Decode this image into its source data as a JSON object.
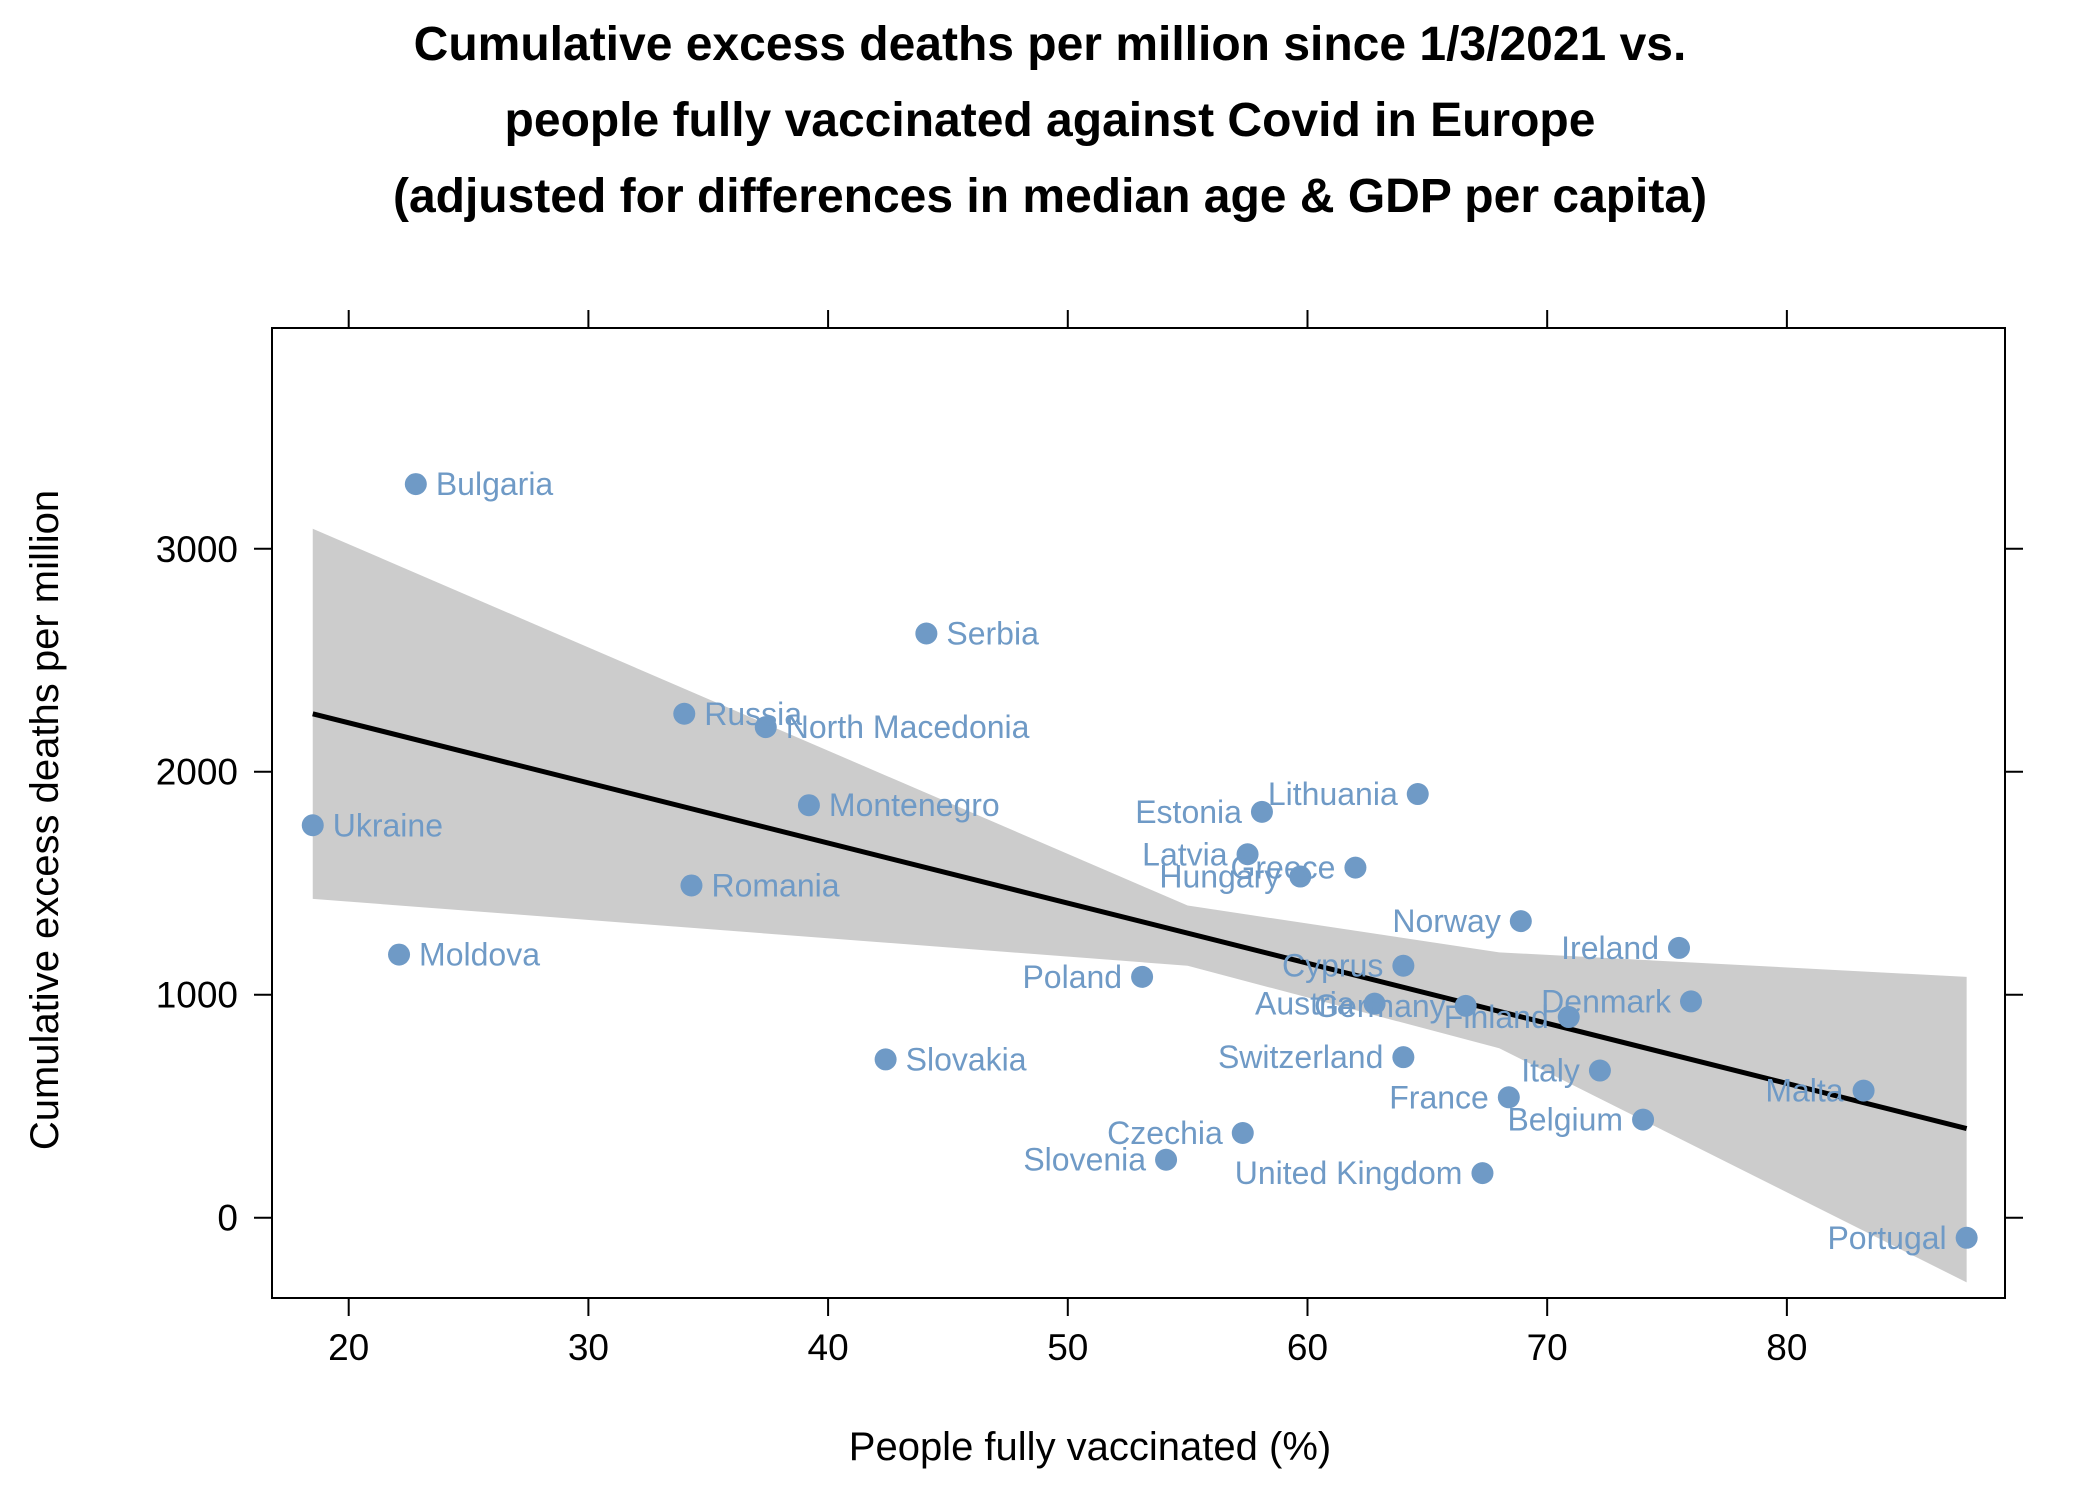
{
  "chart_data": {
    "type": "scatter",
    "title_lines": [
      "Cumulative excess deaths per million since 1/3/2021 vs.",
      "people fully vaccinated against Covid in Europe",
      "(adjusted for differences in median age & GDP per capita)"
    ],
    "xlabel": "People fully vaccinated (%)",
    "ylabel": "Cumulative excess deaths per million",
    "xlim": [
      16.8,
      89.1
    ],
    "ylim": [
      -360,
      3990
    ],
    "xticks": [
      20,
      30,
      40,
      50,
      60,
      70,
      80
    ],
    "yticks": [
      0,
      1000,
      2000,
      3000
    ],
    "colors": {
      "points": "#6f9ac6",
      "labels": "#6f9ac6",
      "ribbon": "#cccccc",
      "line": "#000000"
    },
    "trend_line": {
      "x": [
        18.5,
        87.5
      ],
      "y": [
        2260,
        400
      ]
    },
    "confidence_band": {
      "x": [
        18.5,
        55,
        68,
        87.5
      ],
      "lower": [
        1430,
        1130,
        760,
        -290
      ],
      "upper": [
        3090,
        1400,
        1190,
        1080
      ]
    },
    "points": [
      {
        "label": "Bulgaria",
        "x": 22.8,
        "y": 3290,
        "label_side": "right"
      },
      {
        "label": "Serbia",
        "x": 44.1,
        "y": 2620,
        "label_side": "right"
      },
      {
        "label": "Russia",
        "x": 34.0,
        "y": 2260,
        "label_side": "right"
      },
      {
        "label": "North Macedonia",
        "x": 37.4,
        "y": 2200,
        "label_side": "right"
      },
      {
        "label": "Montenegro",
        "x": 39.2,
        "y": 1850,
        "label_side": "right"
      },
      {
        "label": "Ukraine",
        "x": 18.5,
        "y": 1760,
        "label_side": "right"
      },
      {
        "label": "Romania",
        "x": 34.3,
        "y": 1490,
        "label_side": "right"
      },
      {
        "label": "Moldova",
        "x": 22.1,
        "y": 1180,
        "label_side": "right"
      },
      {
        "label": "Slovakia",
        "x": 42.4,
        "y": 710,
        "label_side": "right"
      },
      {
        "label": "Estonia",
        "x": 58.1,
        "y": 1820,
        "label_side": "left"
      },
      {
        "label": "Lithuania",
        "x": 64.6,
        "y": 1900,
        "label_side": "left"
      },
      {
        "label": "Latvia",
        "x": 57.5,
        "y": 1630,
        "label_side": "left"
      },
      {
        "label": "Greece",
        "x": 62.0,
        "y": 1570,
        "label_side": "left"
      },
      {
        "label": "Hungary",
        "x": 59.7,
        "y": 1530,
        "label_side": "left"
      },
      {
        "label": "Norway",
        "x": 68.9,
        "y": 1330,
        "label_side": "left"
      },
      {
        "label": "Ireland",
        "x": 75.5,
        "y": 1210,
        "label_side": "left"
      },
      {
        "label": "Cyprus",
        "x": 64.0,
        "y": 1130,
        "label_side": "left"
      },
      {
        "label": "Poland",
        "x": 53.1,
        "y": 1080,
        "label_side": "left"
      },
      {
        "label": "Austria",
        "x": 62.8,
        "y": 960,
        "label_side": "left"
      },
      {
        "label": "Germany",
        "x": 66.6,
        "y": 950,
        "label_side": "left"
      },
      {
        "label": "Denmark",
        "x": 76.0,
        "y": 970,
        "label_side": "left"
      },
      {
        "label": "Finland",
        "x": 70.9,
        "y": 900,
        "label_side": "left"
      },
      {
        "label": "Switzerland",
        "x": 64.0,
        "y": 720,
        "label_side": "left"
      },
      {
        "label": "Italy",
        "x": 72.2,
        "y": 660,
        "label_side": "left"
      },
      {
        "label": "France",
        "x": 68.4,
        "y": 540,
        "label_side": "left"
      },
      {
        "label": "Malta",
        "x": 83.2,
        "y": 570,
        "label_side": "left"
      },
      {
        "label": "Belgium",
        "x": 74.0,
        "y": 440,
        "label_side": "left"
      },
      {
        "label": "Czechia",
        "x": 57.3,
        "y": 380,
        "label_side": "left"
      },
      {
        "label": "Slovenia",
        "x": 54.1,
        "y": 260,
        "label_side": "left"
      },
      {
        "label": "United Kingdom",
        "x": 67.3,
        "y": 200,
        "label_side": "left"
      },
      {
        "label": "Portugal",
        "x": 87.5,
        "y": -90,
        "label_side": "left"
      }
    ]
  }
}
